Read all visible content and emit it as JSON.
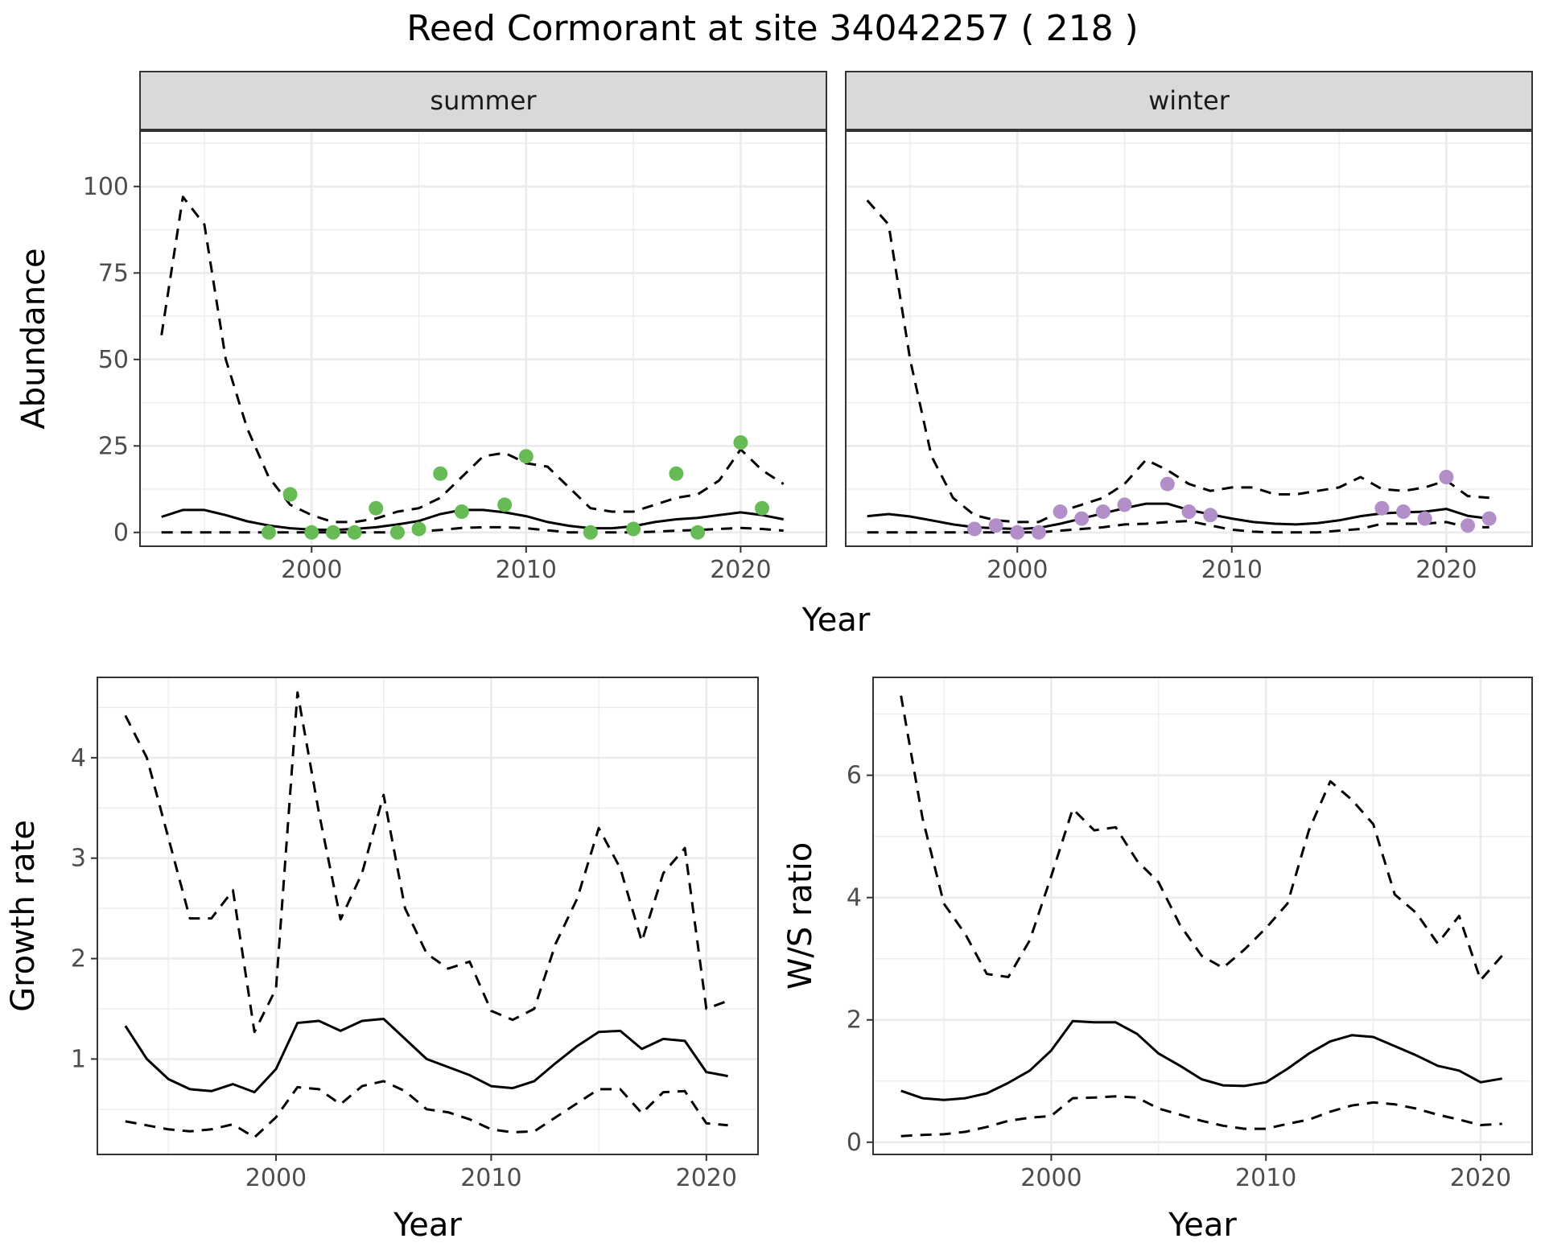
{
  "figure": {
    "title": "Reed Cormorant at site 34042257 ( 218 )"
  },
  "chart_data": [
    {
      "type": "line",
      "id": "abundance",
      "xlabel": "Year",
      "ylabel": "Abundance",
      "xlim": [
        1992,
        2024
      ],
      "ylim": [
        -4,
        116
      ],
      "xticks": [
        2000,
        2010,
        2020
      ],
      "yticks": [
        0,
        25,
        50,
        75,
        100
      ],
      "grid": true,
      "facets": [
        {
          "strip": "summer",
          "point_color": "#66bb55",
          "years": [
            1993,
            1994,
            1995,
            1996,
            1997,
            1998,
            1999,
            2000,
            2001,
            2002,
            2003,
            2004,
            2005,
            2006,
            2007,
            2008,
            2009,
            2010,
            2011,
            2012,
            2013,
            2014,
            2015,
            2016,
            2017,
            2018,
            2019,
            2020,
            2021,
            2022
          ],
          "estimate": [
            4.5,
            6.5,
            6.5,
            5,
            3.2,
            2,
            1.2,
            0.8,
            0.7,
            1,
            1.5,
            2.3,
            3.3,
            5.3,
            6.5,
            6.5,
            5.8,
            4.7,
            3,
            1.9,
            1.2,
            1.2,
            1.8,
            3,
            3.8,
            4.2,
            5,
            5.8,
            5,
            3.8
          ],
          "upper": [
            57,
            97,
            89,
            50,
            30,
            16,
            8,
            5,
            3,
            3,
            4,
            6,
            7,
            10,
            16,
            22,
            23,
            20,
            19,
            13,
            7,
            6,
            6,
            8,
            10,
            11,
            15,
            24,
            18,
            14
          ],
          "lower": [
            0,
            0,
            0,
            0,
            0,
            0,
            0,
            0,
            0,
            0,
            0,
            0,
            0.3,
            0.7,
            1.3,
            1.5,
            1.5,
            1.2,
            0.6,
            0,
            0,
            0,
            0,
            0.2,
            0.5,
            0.7,
            1,
            1.3,
            1,
            0.5
          ],
          "observed": [
            [
              1998,
              0
            ],
            [
              1999,
              11
            ],
            [
              2000,
              0
            ],
            [
              2001,
              0
            ],
            [
              2002,
              0
            ],
            [
              2003,
              7
            ],
            [
              2004,
              0
            ],
            [
              2005,
              1
            ],
            [
              2006,
              17
            ],
            [
              2007,
              6
            ],
            [
              2009,
              8
            ],
            [
              2010,
              22
            ],
            [
              2013,
              0
            ],
            [
              2015,
              1
            ],
            [
              2017,
              17
            ],
            [
              2018,
              0
            ],
            [
              2020,
              26
            ],
            [
              2021,
              7
            ]
          ]
        },
        {
          "strip": "winter",
          "point_color": "#b38fca",
          "years": [
            1993,
            1994,
            1995,
            1996,
            1997,
            1998,
            1999,
            2000,
            2001,
            2002,
            2003,
            2004,
            2005,
            2006,
            2007,
            2008,
            2009,
            2010,
            2011,
            2012,
            2013,
            2014,
            2015,
            2016,
            2017,
            2018,
            2019,
            2020,
            2021,
            2022
          ],
          "estimate": [
            4.7,
            5.3,
            4.6,
            3.5,
            2.3,
            1.5,
            1.2,
            1,
            1.3,
            2.5,
            4,
            5.5,
            7,
            8.3,
            8.3,
            6.5,
            5.2,
            4,
            3,
            2.5,
            2.3,
            2.7,
            3.5,
            4.7,
            5.5,
            5.8,
            6,
            6.8,
            4.8,
            4
          ],
          "upper": [
            96,
            89,
            50,
            22,
            10,
            5,
            3.5,
            3,
            3,
            6,
            8,
            10,
            14,
            21,
            18,
            14,
            12,
            13,
            13,
            11,
            11,
            12,
            13,
            16,
            12.5,
            12,
            13,
            15,
            10.5,
            10
          ],
          "lower": [
            0,
            0,
            0,
            0,
            0,
            0,
            0,
            0,
            0,
            0.5,
            1,
            1.5,
            2.3,
            2.5,
            3,
            3.3,
            2,
            0.8,
            0.2,
            0,
            0,
            0,
            0.5,
            1,
            2.5,
            2.5,
            2.5,
            3,
            1.5,
            1.5
          ],
          "observed": [
            [
              1998,
              1
            ],
            [
              1999,
              2
            ],
            [
              2000,
              0
            ],
            [
              2001,
              0
            ],
            [
              2002,
              6
            ],
            [
              2003,
              4
            ],
            [
              2004,
              6
            ],
            [
              2005,
              8
            ],
            [
              2007,
              14
            ],
            [
              2008,
              6
            ],
            [
              2009,
              5
            ],
            [
              2017,
              7
            ],
            [
              2018,
              6
            ],
            [
              2019,
              4
            ],
            [
              2020,
              16
            ],
            [
              2021,
              2
            ],
            [
              2022,
              4
            ]
          ]
        }
      ]
    },
    {
      "type": "line",
      "id": "growth",
      "xlabel": "Year",
      "ylabel": "Growth rate",
      "xlim": [
        1991.7,
        2022.4
      ],
      "ylim": [
        0.05,
        4.8
      ],
      "xticks": [
        2000,
        2010,
        2020
      ],
      "yticks": [
        1,
        2,
        3,
        4
      ],
      "grid": true,
      "years": [
        1993,
        1994,
        1995,
        1996,
        1997,
        1998,
        1999,
        2000,
        2001,
        2002,
        2003,
        2004,
        2005,
        2006,
        2007,
        2008,
        2009,
        2010,
        2011,
        2012,
        2013,
        2014,
        2015,
        2016,
        2017,
        2018,
        2019,
        2020,
        2021
      ],
      "estimate": [
        1.33,
        1.0,
        0.8,
        0.7,
        0.68,
        0.75,
        0.67,
        0.9,
        1.36,
        1.38,
        1.28,
        1.38,
        1.4,
        1.2,
        1.0,
        0.92,
        0.84,
        0.73,
        0.71,
        0.78,
        0.96,
        1.13,
        1.27,
        1.28,
        1.1,
        1.2,
        1.18,
        0.87,
        0.83
      ],
      "upper": [
        4.42,
        4.0,
        3.2,
        2.4,
        2.4,
        2.68,
        1.27,
        1.7,
        4.65,
        3.45,
        2.39,
        2.85,
        3.63,
        2.5,
        2.05,
        1.9,
        1.97,
        1.48,
        1.39,
        1.5,
        2.15,
        2.6,
        3.3,
        2.9,
        2.17,
        2.85,
        3.1,
        1.5,
        1.58
      ],
      "lower": [
        0.38,
        0.34,
        0.3,
        0.28,
        0.3,
        0.35,
        0.22,
        0.42,
        0.72,
        0.7,
        0.55,
        0.73,
        0.78,
        0.68,
        0.5,
        0.47,
        0.4,
        0.3,
        0.27,
        0.28,
        0.42,
        0.56,
        0.7,
        0.7,
        0.46,
        0.67,
        0.68,
        0.36,
        0.34
      ]
    },
    {
      "type": "line",
      "id": "ratio",
      "xlabel": "Year",
      "ylabel": "W/S ratio",
      "xlim": [
        1991.7,
        2022.4
      ],
      "ylim": [
        -0.2,
        7.6
      ],
      "xticks": [
        2000,
        2010,
        2020
      ],
      "yticks": [
        0,
        2,
        4,
        6
      ],
      "grid": true,
      "years": [
        1993,
        1994,
        1995,
        1996,
        1997,
        1998,
        1999,
        2000,
        2001,
        2002,
        2003,
        2004,
        2005,
        2006,
        2007,
        2008,
        2009,
        2010,
        2011,
        2012,
        2013,
        2014,
        2015,
        2016,
        2017,
        2018,
        2019,
        2020,
        2021
      ],
      "estimate": [
        0.84,
        0.72,
        0.69,
        0.72,
        0.8,
        0.97,
        1.17,
        1.5,
        1.98,
        1.96,
        1.96,
        1.77,
        1.45,
        1.25,
        1.03,
        0.93,
        0.92,
        0.98,
        1.2,
        1.45,
        1.65,
        1.75,
        1.72,
        1.57,
        1.42,
        1.25,
        1.17,
        0.98,
        1.04
      ],
      "upper": [
        7.3,
        5.3,
        3.9,
        3.4,
        2.75,
        2.7,
        3.3,
        4.35,
        5.45,
        5.1,
        5.15,
        4.6,
        4.25,
        3.55,
        3.05,
        2.85,
        3.15,
        3.5,
        3.9,
        5.1,
        5.9,
        5.6,
        5.2,
        4.05,
        3.75,
        3.25,
        3.7,
        2.65,
        3.05
      ],
      "lower": [
        0.1,
        0.12,
        0.13,
        0.17,
        0.25,
        0.35,
        0.4,
        0.43,
        0.72,
        0.73,
        0.75,
        0.73,
        0.55,
        0.45,
        0.35,
        0.27,
        0.22,
        0.22,
        0.3,
        0.37,
        0.5,
        0.6,
        0.65,
        0.62,
        0.55,
        0.45,
        0.37,
        0.28,
        0.3
      ]
    }
  ]
}
